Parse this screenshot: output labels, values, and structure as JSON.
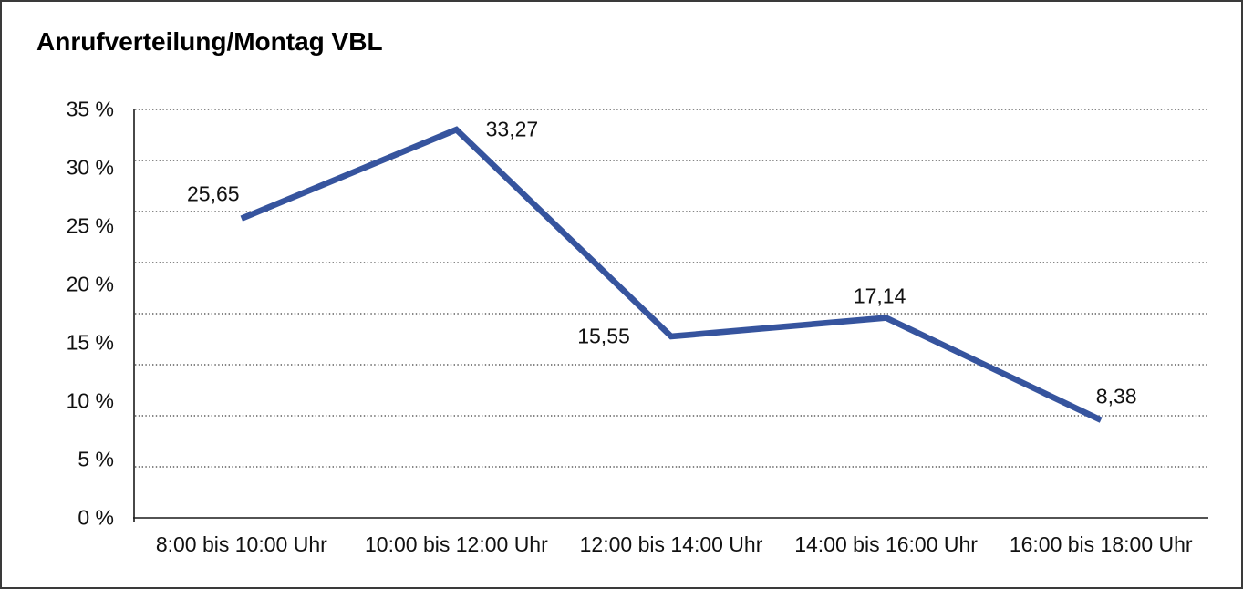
{
  "chart_data": {
    "type": "line",
    "title": "Anrufverteilung/Montag VBL",
    "categories": [
      "8:00 bis 10:00 Uhr",
      "10:00 bis 12:00 Uhr",
      "12:00 bis 14:00 Uhr",
      "14:00 bis 16:00 Uhr",
      "16:00 bis 18:00 Uhr"
    ],
    "values": [
      25.65,
      33.27,
      15.55,
      17.14,
      8.38
    ],
    "value_labels": [
      "25,65",
      "33,27",
      "15,55",
      "17,14",
      "8,38"
    ],
    "ytick_labels": [
      "35 %",
      "30 %",
      "25 %",
      "20 %",
      "15 %",
      "10 %",
      "5 %",
      "0 %"
    ],
    "ytick_values": [
      35,
      30,
      25,
      20,
      15,
      10,
      5,
      0
    ],
    "ylim": [
      0,
      35
    ],
    "xlabel": "",
    "ylabel": "",
    "grid": "horizontal dotted lines, 8 equal divisions",
    "legend": "none",
    "colors": {
      "line": "#36549E",
      "axis": "#1a1a1a",
      "gridline": "#3f3f3f",
      "text": "#111111",
      "frame_border": "#3a3a3a",
      "background": "#ffffff"
    }
  }
}
